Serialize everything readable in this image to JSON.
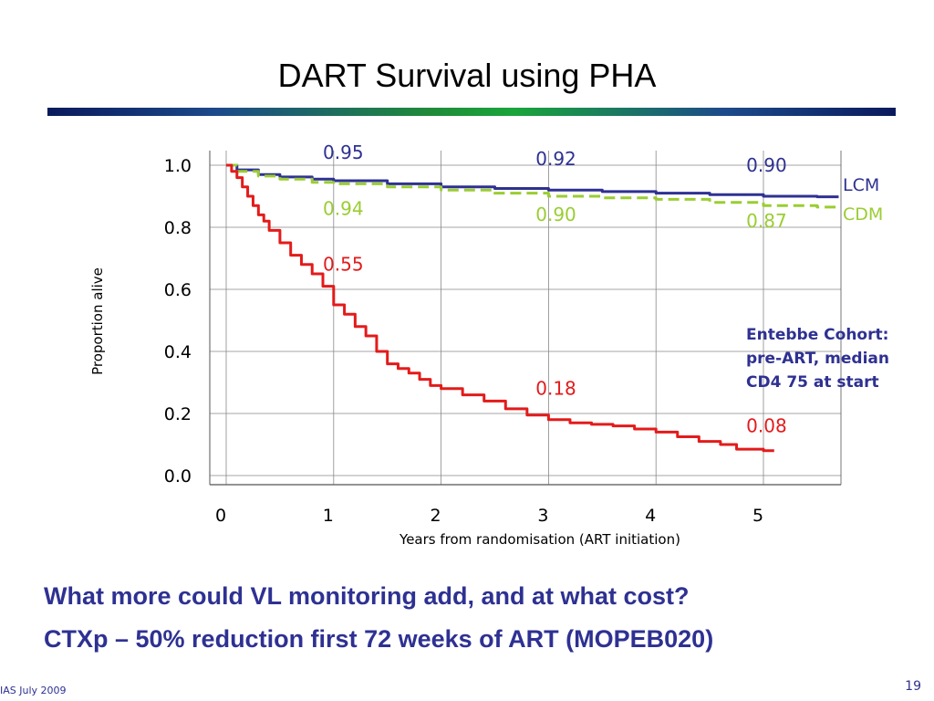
{
  "slide": {
    "title": "DART Survival using PHA",
    "bottom_lines": [
      "What more could VL monitoring add, and at what cost?",
      "CTXp – 50% reduction first 72 weeks of ART (MOPEB020)"
    ],
    "footer_left": "IAS July 2009",
    "page_number": "19"
  },
  "colors": {
    "lcm": "#2e3192",
    "cdm": "#9acd32",
    "cohort": "#e31b1b",
    "grid": "#888888",
    "note": "#2e3192"
  },
  "chart_data": {
    "type": "line",
    "xlabel": "Years from randomisation (ART initiation)",
    "ylabel": "Proportion alive",
    "xlim": [
      0,
      5.7
    ],
    "ylim": [
      0.0,
      1.0
    ],
    "x_ticks": [
      "0",
      "1",
      "2",
      "3",
      "4",
      "5"
    ],
    "y_ticks": [
      "0.0",
      "0.2",
      "0.4",
      "0.6",
      "0.8",
      "1.0"
    ],
    "grid": "vertical at years 0-5, horizontal at y ticks",
    "series": [
      {
        "name": "LCM",
        "color": "#2e3192",
        "style": "solid",
        "x": [
          0,
          0.1,
          0.3,
          0.5,
          0.8,
          1.0,
          1.5,
          2.0,
          2.5,
          3.0,
          3.5,
          4.0,
          4.5,
          5.0,
          5.5,
          5.7
        ],
        "y": [
          1.0,
          0.985,
          0.97,
          0.962,
          0.955,
          0.95,
          0.94,
          0.93,
          0.925,
          0.92,
          0.915,
          0.91,
          0.905,
          0.9,
          0.898,
          0.898
        ]
      },
      {
        "name": "CDM",
        "color": "#9acd32",
        "style": "dashed",
        "x": [
          0,
          0.1,
          0.3,
          0.5,
          0.8,
          1.0,
          1.5,
          2.0,
          2.5,
          3.0,
          3.5,
          4.0,
          4.5,
          5.0,
          5.5,
          5.7
        ],
        "y": [
          1.0,
          0.98,
          0.965,
          0.955,
          0.945,
          0.94,
          0.93,
          0.92,
          0.91,
          0.9,
          0.895,
          0.89,
          0.88,
          0.87,
          0.865,
          0.865
        ]
      },
      {
        "name": "Entebbe Cohort",
        "color": "#e31b1b",
        "style": "solid",
        "x": [
          0,
          0.05,
          0.1,
          0.15,
          0.2,
          0.25,
          0.3,
          0.35,
          0.4,
          0.5,
          0.6,
          0.7,
          0.8,
          0.9,
          1.0,
          1.1,
          1.2,
          1.3,
          1.4,
          1.5,
          1.6,
          1.7,
          1.8,
          1.9,
          2.0,
          2.2,
          2.4,
          2.6,
          2.8,
          3.0,
          3.2,
          3.4,
          3.6,
          3.8,
          4.0,
          4.2,
          4.4,
          4.6,
          4.75,
          5.0,
          5.1
        ],
        "y": [
          1.0,
          0.98,
          0.96,
          0.93,
          0.9,
          0.87,
          0.84,
          0.82,
          0.79,
          0.75,
          0.71,
          0.68,
          0.65,
          0.61,
          0.55,
          0.52,
          0.48,
          0.45,
          0.4,
          0.36,
          0.345,
          0.33,
          0.31,
          0.29,
          0.28,
          0.26,
          0.24,
          0.215,
          0.195,
          0.18,
          0.17,
          0.165,
          0.16,
          0.15,
          0.14,
          0.125,
          0.11,
          0.1,
          0.085,
          0.08,
          0.08
        ]
      }
    ],
    "annotations": [
      {
        "text": "0.95",
        "x": 0.9,
        "y": 1.02,
        "series": "LCM"
      },
      {
        "text": "0.92",
        "x": 2.88,
        "y": 1.0,
        "series": "LCM"
      },
      {
        "text": "0.90",
        "x": 4.84,
        "y": 0.98,
        "series": "LCM"
      },
      {
        "text": "0.94",
        "x": 0.9,
        "y": 0.84,
        "series": "CDM"
      },
      {
        "text": "0.90",
        "x": 2.88,
        "y": 0.82,
        "series": "CDM"
      },
      {
        "text": "0.87",
        "x": 4.84,
        "y": 0.8,
        "series": "CDM"
      },
      {
        "text": "0.55",
        "x": 0.9,
        "y": 0.66,
        "series": "Entebbe Cohort"
      },
      {
        "text": "0.18",
        "x": 2.88,
        "y": 0.26,
        "series": "Entebbe Cohort"
      },
      {
        "text": "0.08",
        "x": 4.84,
        "y": 0.14,
        "series": "Entebbe Cohort"
      }
    ],
    "legend": [
      {
        "label": "LCM",
        "series": "LCM"
      },
      {
        "label": "CDM",
        "series": "CDM"
      }
    ],
    "note_lines": [
      "Entebbe Cohort:",
      "pre-ART, median",
      "CD4 75 at start"
    ]
  }
}
